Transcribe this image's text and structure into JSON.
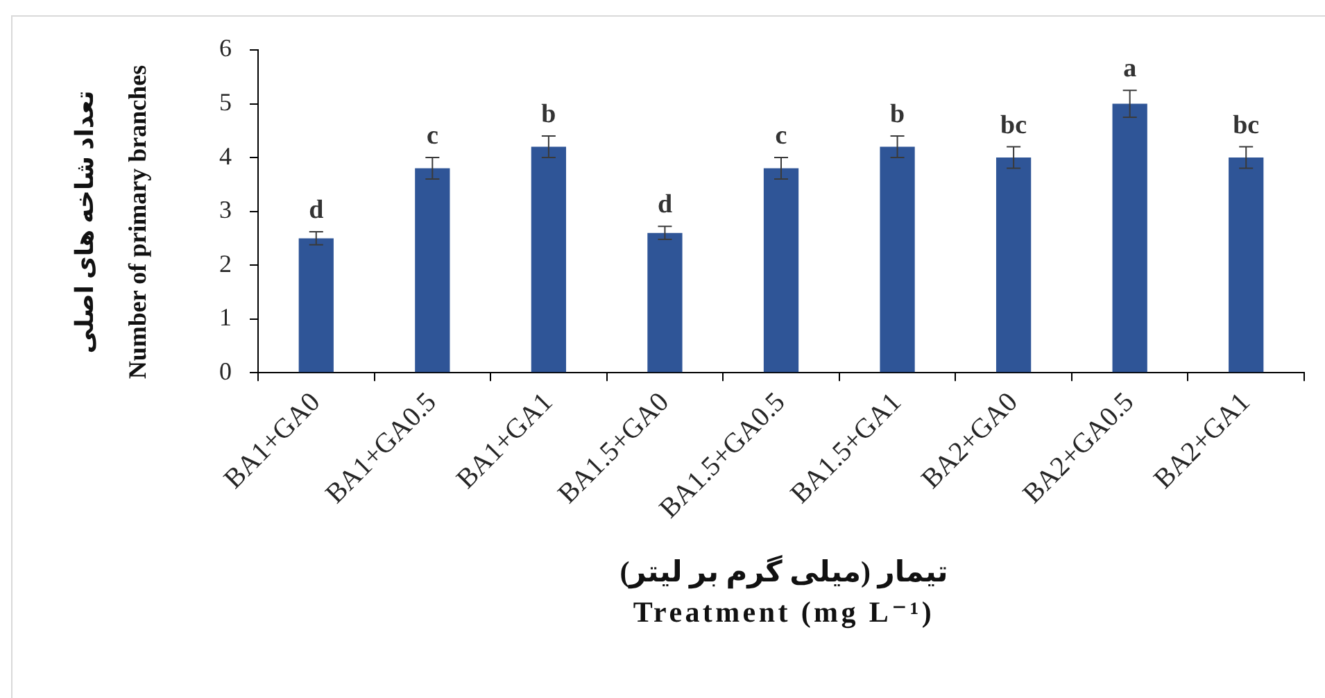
{
  "chart_data": {
    "type": "bar",
    "categories": [
      "BA1+GA0",
      "BA1+GA0.5",
      "BA1+GA1",
      "BA1.5+GA0",
      "BA1.5+GA0.5",
      "BA1.5+GA1",
      "BA2+GA0",
      "BA2+GA0.5",
      "BA2+GA1"
    ],
    "values": [
      2.5,
      3.8,
      4.2,
      2.6,
      3.8,
      4.2,
      4.0,
      5.0,
      4.0
    ],
    "errors": [
      0.12,
      0.2,
      0.2,
      0.12,
      0.2,
      0.2,
      0.2,
      0.25,
      0.2
    ],
    "color": "#2f5597",
    "ylim": [
      0,
      6
    ],
    "yticks": [
      0,
      1,
      2,
      3,
      4,
      5,
      6
    ],
    "ylabel": "تعداد شاخه های اصلی\nNumber of primary branches",
    "xlabel": "تیمار (میلی گرم بر لیتر)\nTreatment (mg L⁻¹)",
    "annotations": [
      {
        "text": "d",
        "x": "BA1+GA0",
        "y": 2.5
      },
      {
        "text": "c",
        "x": "BA1+GA0.5",
        "y": 3.8
      },
      {
        "text": "b",
        "x": "BA1+GA1",
        "y": 4.2
      },
      {
        "text": "d",
        "x": "BA1.5+GA0",
        "y": 2.6
      },
      {
        "text": "c",
        "x": "BA1.5+GA0.5",
        "y": 3.8
      },
      {
        "text": "b",
        "x": "BA1.5+GA1",
        "y": 4.2
      },
      {
        "text": "bc",
        "x": "BA2+GA0",
        "y": 4.0
      },
      {
        "text": "a",
        "x": "BA2+GA0.5",
        "y": 5.0
      },
      {
        "text": "bc",
        "x": "BA2+GA1",
        "y": 4.0
      }
    ],
    "grid": false,
    "legend": false
  }
}
